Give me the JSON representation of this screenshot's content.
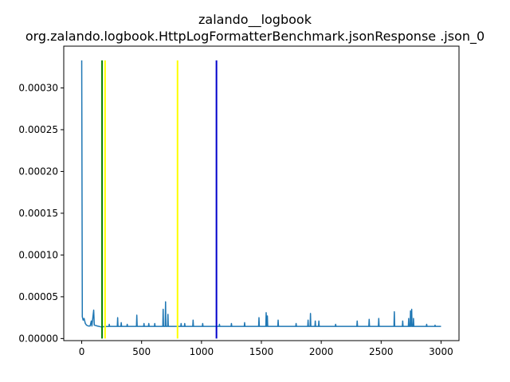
{
  "chart_data": {
    "type": "line",
    "title": "zalando__logbook",
    "subtitle": "org.zalando.logbook.HttpLogFormatterBenchmark.jsonResponse .json_0",
    "xlabel": "",
    "ylabel": "",
    "xlim": [
      -150,
      3150
    ],
    "ylim": [
      -2.5e-06,
      0.00035
    ],
    "xticks": [
      0,
      500,
      1000,
      1500,
      2000,
      2500,
      3000
    ],
    "xtick_labels": [
      "0",
      "500",
      "1000",
      "1500",
      "2000",
      "2500",
      "3000"
    ],
    "yticks": [
      0,
      5e-05,
      0.0001,
      0.00015,
      0.0002,
      0.00025,
      0.0003
    ],
    "ytick_labels": [
      "0.00000",
      "0.00005",
      "0.00010",
      "0.00015",
      "0.00020",
      "0.00025",
      "0.00030"
    ],
    "grid": false,
    "legend": "none",
    "series": [
      {
        "color": "#1f77b4",
        "baseline": 1.45e-05,
        "points": [
          [
            0,
            0.000333
          ],
          [
            5,
            2.6e-05
          ],
          [
            12,
            2.2e-05
          ],
          [
            20,
            2.4e-05
          ],
          [
            30,
            1.8e-05
          ],
          [
            40,
            1.6e-05
          ],
          [
            55,
            1.5e-05
          ],
          [
            70,
            1.5e-05
          ],
          [
            80,
            2.1e-05
          ],
          [
            85,
            1.5e-05
          ],
          [
            100,
            3.4e-05
          ],
          [
            105,
            1.6e-05
          ],
          [
            130,
            1.5e-05
          ],
          [
            160,
            1.4e-05
          ]
        ],
        "spikes": [
          [
            230,
            1.7e-05
          ],
          [
            300,
            2.5e-05
          ],
          [
            330,
            1.9e-05
          ],
          [
            380,
            1.7e-05
          ],
          [
            460,
            2.8e-05
          ],
          [
            520,
            1.8e-05
          ],
          [
            560,
            1.8e-05
          ],
          [
            610,
            1.8e-05
          ],
          [
            680,
            3.5e-05
          ],
          [
            700,
            4.4e-05
          ],
          [
            720,
            2.9e-05
          ],
          [
            830,
            1.8e-05
          ],
          [
            860,
            1.8e-05
          ],
          [
            930,
            2.2e-05
          ],
          [
            1010,
            1.8e-05
          ],
          [
            1150,
            1.7e-05
          ],
          [
            1250,
            1.8e-05
          ],
          [
            1360,
            1.9e-05
          ],
          [
            1480,
            2.5e-05
          ],
          [
            1540,
            3.1e-05
          ],
          [
            1550,
            2.7e-05
          ],
          [
            1640,
            2.2e-05
          ],
          [
            1790,
            1.8e-05
          ],
          [
            1890,
            2.2e-05
          ],
          [
            1910,
            3e-05
          ],
          [
            1950,
            2.1e-05
          ],
          [
            1980,
            2.1e-05
          ],
          [
            2120,
            1.7e-05
          ],
          [
            2300,
            2.1e-05
          ],
          [
            2400,
            2.3e-05
          ],
          [
            2480,
            2.4e-05
          ],
          [
            2610,
            3.2e-05
          ],
          [
            2680,
            2.1e-05
          ],
          [
            2730,
            2.4e-05
          ],
          [
            2745,
            3.3e-05
          ],
          [
            2755,
            3.5e-05
          ],
          [
            2770,
            2.4e-05
          ],
          [
            2880,
            1.7e-05
          ],
          [
            2950,
            1.6e-05
          ]
        ],
        "end_x": 3000
      }
    ],
    "vertical_lines": [
      {
        "x": 170,
        "color": "#008000"
      },
      {
        "x": 195,
        "color": "#ffff00"
      },
      {
        "x": 800,
        "color": "#ffff00"
      },
      {
        "x": 1125,
        "color": "#0000cc"
      }
    ],
    "vline_ymax": 0.000333
  }
}
